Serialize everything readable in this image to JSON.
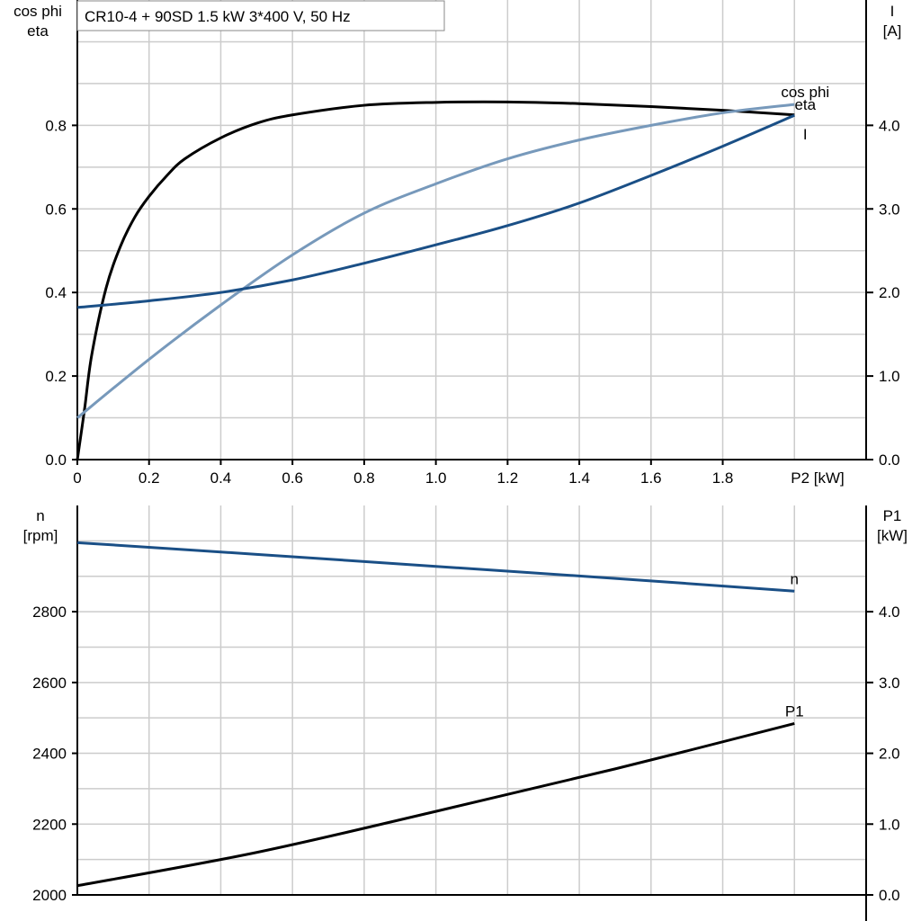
{
  "chart_data": [
    {
      "type": "line",
      "title": "CR10-4 + 90SD   1.5 kW   3*400 V, 50 Hz",
      "xlabel": "P2 [kW]",
      "ylabel_left": [
        "cos phi",
        "eta"
      ],
      "ylabel_right": [
        "I",
        "[A]"
      ],
      "xlim": [
        0,
        2.2
      ],
      "ylim_left": [
        0,
        1.1
      ],
      "ylim_right": [
        0,
        5.5
      ],
      "xticks": [
        "0",
        "0.2",
        "0.4",
        "0.6",
        "0.8",
        "1.0",
        "1.2",
        "1.4",
        "1.6",
        "1.8"
      ],
      "xtick_values": [
        0,
        0.2,
        0.4,
        0.6,
        0.8,
        1.0,
        1.2,
        1.4,
        1.6,
        1.8
      ],
      "yticks_left": [
        "0.0",
        "0.2",
        "0.4",
        "0.6",
        "0.8"
      ],
      "ytick_left_values": [
        0,
        0.2,
        0.4,
        0.6,
        0.8
      ],
      "yticks_right": [
        "0.0",
        "1.0",
        "2.0",
        "3.0",
        "4.0"
      ],
      "ytick_right_values": [
        0,
        1,
        2,
        3,
        4
      ],
      "grid": true,
      "series": [
        {
          "name": "eta",
          "axis": "left",
          "color": "#000000",
          "x": [
            0,
            0.02,
            0.04,
            0.08,
            0.12,
            0.16,
            0.2,
            0.25,
            0.3,
            0.4,
            0.5,
            0.6,
            0.8,
            1.0,
            1.2,
            1.4,
            1.6,
            1.8,
            2.0
          ],
          "y": [
            0,
            0.12,
            0.25,
            0.41,
            0.51,
            0.58,
            0.63,
            0.68,
            0.72,
            0.77,
            0.805,
            0.825,
            0.848,
            0.855,
            0.856,
            0.852,
            0.845,
            0.836,
            0.825
          ]
        },
        {
          "name": "cos phi",
          "axis": "left",
          "color": "#7799bb",
          "x": [
            0,
            0.2,
            0.4,
            0.6,
            0.8,
            1.0,
            1.2,
            1.4,
            1.6,
            1.8,
            2.0
          ],
          "y": [
            0.1,
            0.24,
            0.37,
            0.49,
            0.59,
            0.66,
            0.72,
            0.765,
            0.8,
            0.83,
            0.85
          ]
        },
        {
          "name": "I",
          "axis": "right",
          "color": "#1a4f86",
          "x": [
            0,
            0.2,
            0.4,
            0.6,
            0.8,
            1.0,
            1.2,
            1.4,
            1.6,
            1.8,
            2.0
          ],
          "y": [
            1.82,
            1.9,
            2.0,
            2.15,
            2.35,
            2.57,
            2.8,
            3.07,
            3.4,
            3.75,
            4.12
          ]
        }
      ]
    },
    {
      "type": "line",
      "xlim": [
        0,
        2.2
      ],
      "ylabel_left": [
        "n",
        "[rpm]"
      ],
      "ylabel_right": [
        "P1",
        "[kW]"
      ],
      "ylim_left": [
        2000,
        3100
      ],
      "ylim_right": [
        0,
        5.5
      ],
      "yticks_left": [
        "2000",
        "2200",
        "2400",
        "2600",
        "2800"
      ],
      "ytick_left_values": [
        2000,
        2200,
        2400,
        2600,
        2800
      ],
      "yticks_right": [
        "0.0",
        "1.0",
        "2.0",
        "3.0",
        "4.0"
      ],
      "ytick_right_values": [
        0,
        1,
        2,
        3,
        4
      ],
      "grid": true,
      "series": [
        {
          "name": "n",
          "axis": "left",
          "color": "#1a4f86",
          "x": [
            0,
            0.5,
            1.0,
            1.5,
            2.0
          ],
          "y": [
            2995,
            2962,
            2928,
            2894,
            2858
          ]
        },
        {
          "name": "P1",
          "axis": "right",
          "color": "#000000",
          "x": [
            0,
            0.5,
            1.0,
            1.5,
            2.0
          ],
          "y": [
            0.13,
            0.6,
            1.18,
            1.78,
            2.42
          ]
        }
      ]
    }
  ]
}
